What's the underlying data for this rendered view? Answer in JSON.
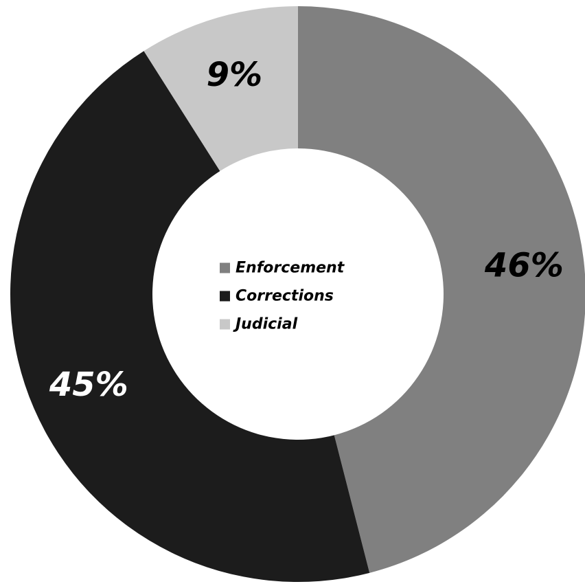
{
  "chart_data": {
    "type": "pie",
    "variant": "donut",
    "legend_position": "center",
    "slices": [
      {
        "label": "Enforcement",
        "value": 46,
        "display": "46%",
        "color": "#808080",
        "label_color": "#000000"
      },
      {
        "label": "Corrections",
        "value": 45,
        "display": "45%",
        "color": "#1c1c1c",
        "label_color": "#ffffff"
      },
      {
        "label": "Judicial",
        "value": 9,
        "display": "9%",
        "color": "#c8c8c8",
        "label_color": "#000000"
      }
    ]
  }
}
